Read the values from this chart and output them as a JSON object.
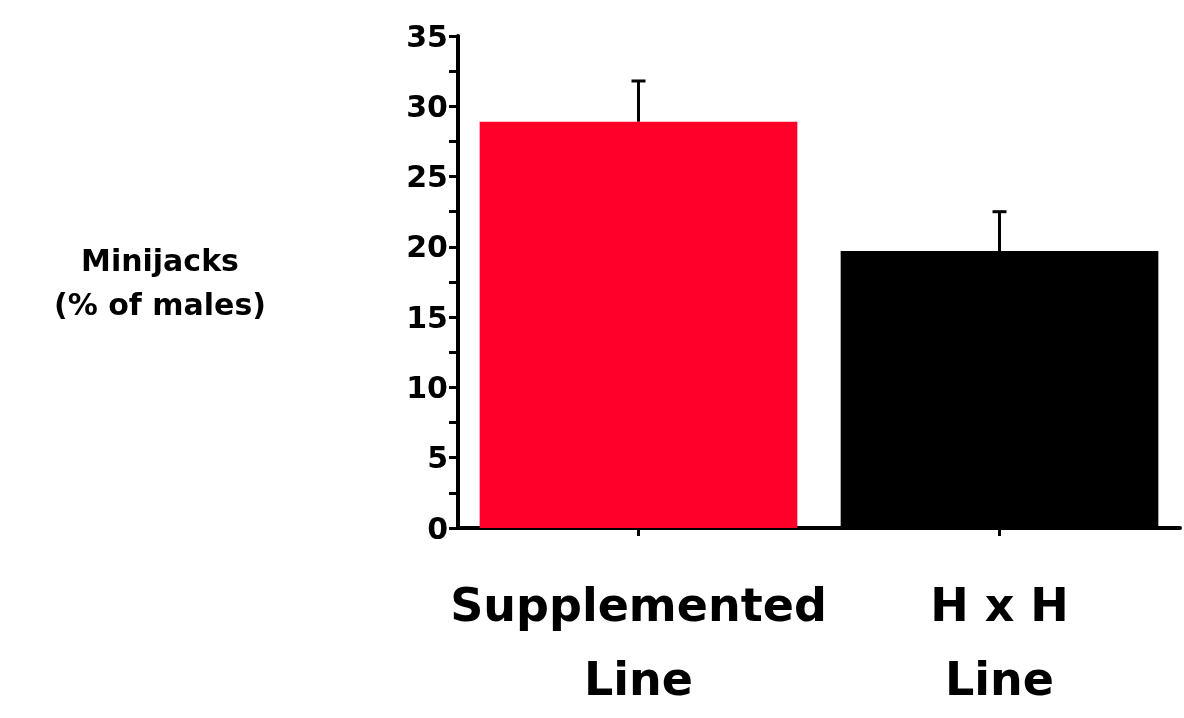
{
  "chart_data": {
    "type": "bar",
    "ylabel": "Minijacks\n(% of males)",
    "categories": [
      "Supplemented\nLine",
      "H x H\nLine"
    ],
    "values": [
      28.9,
      19.7
    ],
    "colors": [
      "#ff0029",
      "#000000"
    ],
    "errors": [
      [
        28.9,
        31.8
      ],
      [
        19.7,
        22.5
      ]
    ],
    "ylim": [
      0,
      35
    ],
    "yticks": [
      0,
      {
        "value": 2.5,
        "label": null
      },
      5,
      {
        "value": 7.5,
        "label": null
      },
      10,
      {
        "value": 12.5,
        "label": null
      },
      15,
      {
        "value": 17.5,
        "label": null
      },
      20,
      {
        "value": 22.5,
        "label": null
      },
      25,
      {
        "value": 27.5,
        "label": null
      },
      30,
      {
        "value": 32.5,
        "label": null
      },
      35
    ],
    "grid": false
  }
}
